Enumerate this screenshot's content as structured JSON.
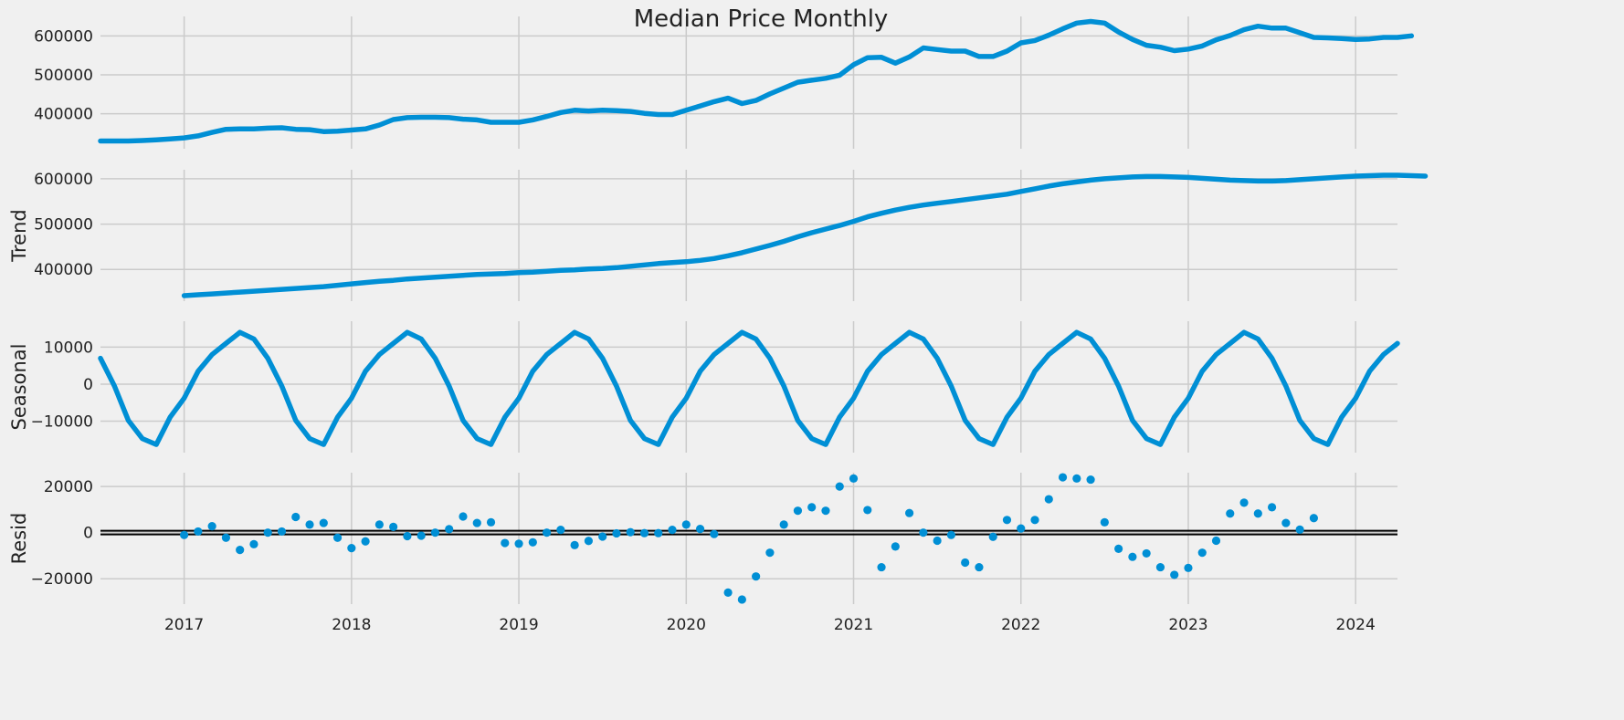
{
  "chart_data": [
    {
      "type": "line",
      "title": "Median Price Monthly",
      "ylabel": "",
      "x_start": "2016-07",
      "x_end": "2024-04",
      "xticks": [
        "2017",
        "2018",
        "2019",
        "2020",
        "2021",
        "2022",
        "2023",
        "2024"
      ],
      "yticks": [
        "400000",
        "500000",
        "600000"
      ],
      "ylim": [
        310000,
        650000
      ],
      "grid": true,
      "series": [
        {
          "start": "2016-07",
          "values": [
            330000,
            330000,
            330000,
            331000,
            333000,
            335000,
            338000,
            343000,
            352000,
            360000,
            361000,
            361000,
            363000,
            364000,
            360000,
            359000,
            354000,
            355000,
            358000,
            361000,
            371000,
            385000,
            390000,
            391000,
            391000,
            390000,
            386000,
            384000,
            378000,
            378000,
            378000,
            384000,
            393000,
            403000,
            409000,
            407000,
            409000,
            408000,
            406000,
            401000,
            398000,
            398000,
            409000,
            420000,
            431000,
            440000,
            426000,
            434000,
            451000,
            466000,
            481000,
            486000,
            491000,
            499000,
            526000,
            544000,
            545000,
            530000,
            546000,
            569000,
            565000,
            561000,
            561000,
            547000,
            547000,
            561000,
            582000,
            588000,
            602000,
            618000,
            633000,
            637000,
            633000,
            610000,
            591000,
            576000,
            571000,
            562000,
            566000,
            574000,
            590000,
            601000,
            616000,
            625000,
            620000,
            620000,
            608000,
            596000,
            595000,
            593000,
            591000,
            592000,
            596000,
            596000,
            600000
          ]
        }
      ]
    },
    {
      "type": "line",
      "title": "",
      "ylabel": "Trend",
      "x_start": "2016-07",
      "x_end": "2024-04",
      "xticks": [
        "2017",
        "2018",
        "2019",
        "2020",
        "2021",
        "2022",
        "2023",
        "2024"
      ],
      "yticks": [
        "400000",
        "500000",
        "600000"
      ],
      "ylim": [
        330000,
        620000
      ],
      "grid": true,
      "series": [
        {
          "start": "2017-01",
          "values": [
            342000,
            344000,
            346000,
            348000,
            350000,
            352000,
            354000,
            356000,
            358000,
            360000,
            362000,
            365000,
            368000,
            371000,
            374000,
            376000,
            379000,
            381000,
            383000,
            385000,
            387000,
            389000,
            390000,
            391000,
            393000,
            394000,
            396000,
            398000,
            399000,
            401000,
            402000,
            404000,
            407000,
            410000,
            413000,
            415000,
            417000,
            420000,
            424000,
            430000,
            437000,
            445000,
            453000,
            462000,
            472000,
            481000,
            489000,
            497000,
            506000,
            516000,
            524000,
            531000,
            537000,
            542000,
            546000,
            550000,
            554000,
            558000,
            562000,
            566000,
            572000,
            578000,
            584000,
            589000,
            593000,
            597000,
            600000,
            602000,
            604000,
            605000,
            605000,
            604000,
            603000,
            601000,
            599000,
            597000,
            596000,
            595000,
            595000,
            596000,
            598000,
            600000,
            602000,
            604000,
            606000,
            607000,
            608000,
            608000,
            607000,
            606000
          ]
        }
      ]
    },
    {
      "type": "line",
      "title": "",
      "ylabel": "Seasonal",
      "x_start": "2016-07",
      "x_end": "2024-04",
      "xticks": [
        "2017",
        "2018",
        "2019",
        "2020",
        "2021",
        "2022",
        "2023",
        "2024"
      ],
      "yticks": [
        "10000",
        "0",
        "−10000"
      ],
      "ylim": [
        -18500,
        17000
      ],
      "grid": true,
      "series": [
        {
          "start": "2016-07",
          "values": [
            7000,
            -500,
            -9800,
            -14700,
            -16300,
            -8900,
            -3800,
            3500,
            8000,
            11000,
            14000,
            12200,
            7000,
            -500,
            -9800,
            -14700,
            -16300,
            -8900,
            -3800,
            3500,
            8000,
            11000,
            14000,
            12200,
            7000,
            -500,
            -9800,
            -14700,
            -16300,
            -8900,
            -3800,
            3500,
            8000,
            11000,
            14000,
            12200,
            7000,
            -500,
            -9800,
            -14700,
            -16300,
            -8900,
            -3800,
            3500,
            8000,
            11000,
            14000,
            12200,
            7000,
            -500,
            -9800,
            -14700,
            -16300,
            -8900,
            -3800,
            3500,
            8000,
            11000,
            14000,
            12200,
            7000,
            -500,
            -9800,
            -14700,
            -16300,
            -8900,
            -3800,
            3500,
            8000,
            11000,
            14000,
            12200,
            7000,
            -500,
            -9800,
            -14700,
            -16300,
            -8900,
            -3800,
            3500,
            8000,
            11000,
            14000,
            12200,
            7000,
            -500,
            -9800,
            -14700,
            -16300,
            -8900,
            -3800,
            3500,
            8000,
            11000
          ]
        }
      ]
    },
    {
      "type": "scatter",
      "title": "",
      "ylabel": "Resid",
      "x_start": "2016-07",
      "x_end": "2024-04",
      "xticks": [
        "2017",
        "2018",
        "2019",
        "2020",
        "2021",
        "2022",
        "2023",
        "2024"
      ],
      "yticks": [
        "20000",
        "0",
        "−20000"
      ],
      "ylim": [
        -31000,
        26000
      ],
      "grid": true,
      "zero_line": true,
      "series": [
        {
          "start": "2017-01",
          "values": [
            -1000,
            500,
            2800,
            -2200,
            -7500,
            -5000,
            0,
            500,
            6800,
            3500,
            4200,
            -2200,
            -6700,
            -3800,
            3500,
            2500,
            -1500,
            -1300,
            0,
            1500,
            7000,
            4200,
            4500,
            -4500,
            -4800,
            -4200,
            0,
            1200,
            -5400,
            -3600,
            -1700,
            -300,
            200,
            -200,
            -200,
            1200,
            3500,
            1600,
            -600,
            -26000,
            -29000,
            -19000,
            -8700,
            3500,
            9500,
            11000,
            9500,
            20000,
            23500,
            9800,
            -15000,
            -6000,
            8500,
            0,
            -3500,
            -1000,
            -13000,
            -15000,
            -1800,
            5500,
            1800,
            5500,
            14500,
            24000,
            23500,
            23000,
            4500,
            -7000,
            -10500,
            -9000,
            -15000,
            -18300,
            -15300,
            -8700,
            -3500,
            8300,
            13000,
            8300,
            11000,
            4200,
            1300,
            6300
          ]
        }
      ]
    }
  ]
}
